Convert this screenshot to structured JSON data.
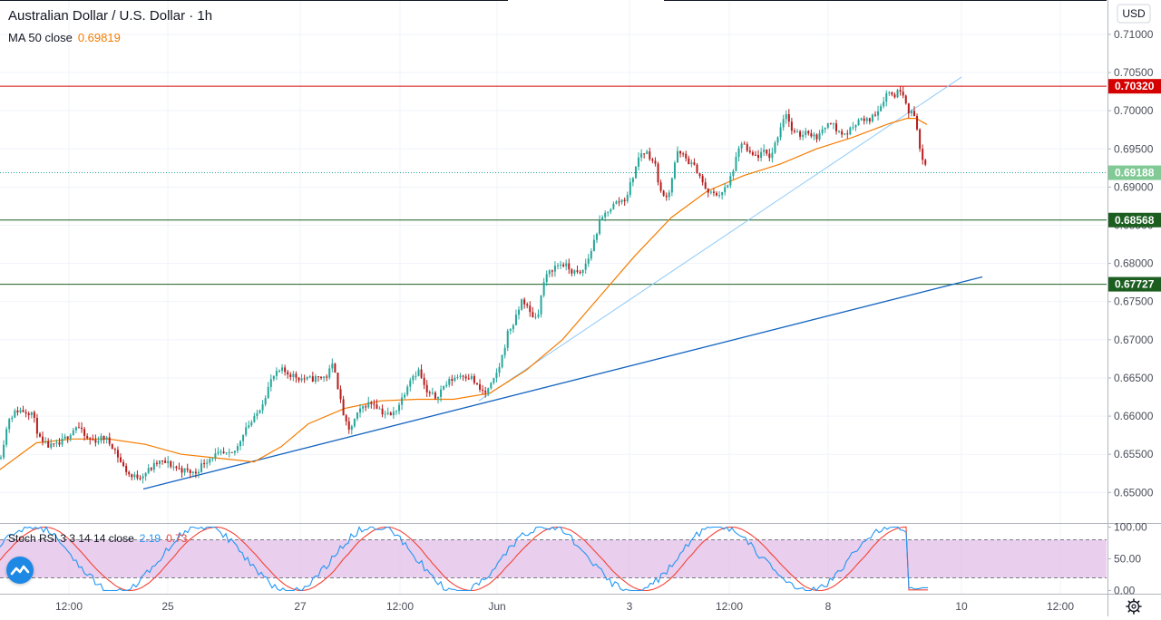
{
  "header": {
    "title": "Australian Dollar / U.S. Dollar · 1h",
    "ma_label": "MA 50 close",
    "ma_value": "0.69819",
    "currency": "USD"
  },
  "stoch": {
    "label": "Stoch RSI 3 3 14 14 close",
    "k_value": "2.19",
    "d_value": "0.73"
  },
  "colors": {
    "bull": "#26a69a",
    "bear": "#b71c1c",
    "ma": "#f57c00",
    "resistance": "#d50000",
    "support": "#1b5e20",
    "trend": "#1565c0",
    "trend_light": "#90caf9",
    "stoch_k": "#2196f3",
    "stoch_d": "#f44336",
    "stoch_band": "#e1bee7",
    "price_tag": "#81c995",
    "accent": "#1e88e5"
  },
  "chart_data": {
    "type": "candlestick",
    "symbol": "Australian Dollar / U.S. Dollar",
    "interval": "1h",
    "y_range": [
      0.646,
      0.7145
    ],
    "y_ticks": [
      "0.65000",
      "0.65500",
      "0.66000",
      "0.66500",
      "0.67000",
      "0.67500",
      "0.68000",
      "0.68500",
      "0.69000",
      "0.69500",
      "0.70000",
      "0.70500",
      "0.71000"
    ],
    "x_ticks": [
      "12:00",
      "25",
      "27",
      "12:00",
      "Jun",
      "3",
      "12:00",
      "8",
      "10",
      "12:00"
    ],
    "price_path": [
      [
        0,
        0.6545
      ],
      [
        10,
        0.6598
      ],
      [
        20,
        0.6608
      ],
      [
        35,
        0.6605
      ],
      [
        45,
        0.6565
      ],
      [
        55,
        0.656
      ],
      [
        65,
        0.6562
      ],
      [
        75,
        0.6575
      ],
      [
        85,
        0.6588
      ],
      [
        95,
        0.657
      ],
      [
        105,
        0.6568
      ],
      [
        115,
        0.6572
      ],
      [
        125,
        0.656
      ],
      [
        135,
        0.6535
      ],
      [
        145,
        0.652
      ],
      [
        155,
        0.6522
      ],
      [
        165,
        0.653
      ],
      [
        175,
        0.654
      ],
      [
        185,
        0.6538
      ],
      [
        195,
        0.6532
      ],
      [
        205,
        0.6528
      ],
      [
        215,
        0.6525
      ],
      [
        225,
        0.654
      ],
      [
        235,
        0.6548
      ],
      [
        245,
        0.655
      ],
      [
        255,
        0.6548
      ],
      [
        262,
        0.656
      ],
      [
        270,
        0.6585
      ],
      [
        280,
        0.6595
      ],
      [
        290,
        0.662
      ],
      [
        300,
        0.665
      ],
      [
        310,
        0.666
      ],
      [
        320,
        0.6655
      ],
      [
        330,
        0.665
      ],
      [
        340,
        0.6648
      ],
      [
        350,
        0.665
      ],
      [
        360,
        0.6652
      ],
      [
        368,
        0.667
      ],
      [
        376,
        0.6615
      ],
      [
        384,
        0.6578
      ],
      [
        392,
        0.6598
      ],
      [
        402,
        0.6615
      ],
      [
        412,
        0.6618
      ],
      [
        422,
        0.6605
      ],
      [
        432,
        0.66
      ],
      [
        442,
        0.662
      ],
      [
        452,
        0.665
      ],
      [
        462,
        0.666
      ],
      [
        470,
        0.663
      ],
      [
        480,
        0.6625
      ],
      [
        490,
        0.664
      ],
      [
        500,
        0.665
      ],
      [
        510,
        0.6655
      ],
      [
        520,
        0.665
      ],
      [
        528,
        0.6635
      ],
      [
        536,
        0.663
      ],
      [
        544,
        0.6645
      ],
      [
        552,
        0.667
      ],
      [
        560,
        0.671
      ],
      [
        568,
        0.6725
      ],
      [
        576,
        0.6755
      ],
      [
        584,
        0.6735
      ],
      [
        592,
        0.6728
      ],
      [
        600,
        0.6778
      ],
      [
        610,
        0.6795
      ],
      [
        620,
        0.68
      ],
      [
        630,
        0.679
      ],
      [
        640,
        0.6785
      ],
      [
        650,
        0.681
      ],
      [
        660,
        0.685
      ],
      [
        670,
        0.687
      ],
      [
        680,
        0.688
      ],
      [
        690,
        0.6885
      ],
      [
        698,
        0.6915
      ],
      [
        706,
        0.6945
      ],
      [
        714,
        0.6945
      ],
      [
        722,
        0.693
      ],
      [
        730,
        0.6885
      ],
      [
        738,
        0.6895
      ],
      [
        746,
        0.6945
      ],
      [
        754,
        0.694
      ],
      [
        762,
        0.693
      ],
      [
        770,
        0.692
      ],
      [
        778,
        0.6895
      ],
      [
        786,
        0.689
      ],
      [
        794,
        0.6892
      ],
      [
        802,
        0.69
      ],
      [
        810,
        0.693
      ],
      [
        818,
        0.696
      ],
      [
        826,
        0.6942
      ],
      [
        834,
        0.694
      ],
      [
        842,
        0.6945
      ],
      [
        850,
        0.694
      ],
      [
        858,
        0.697
      ],
      [
        866,
        0.7
      ],
      [
        874,
        0.697
      ],
      [
        882,
        0.6968
      ],
      [
        890,
        0.6975
      ],
      [
        898,
        0.6965
      ],
      [
        906,
        0.697
      ],
      [
        914,
        0.699
      ],
      [
        922,
        0.6975
      ],
      [
        930,
        0.6968
      ],
      [
        938,
        0.6975
      ],
      [
        946,
        0.699
      ],
      [
        954,
        0.6985
      ],
      [
        962,
        0.6992
      ],
      [
        970,
        0.7005
      ],
      [
        978,
        0.7025
      ],
      [
        986,
        0.702
      ],
      [
        994,
        0.703
      ],
      [
        1002,
        0.7
      ],
      [
        1010,
        0.699
      ],
      [
        1014,
        0.695
      ],
      [
        1018,
        0.693
      ],
      [
        1023,
        0.69188
      ]
    ],
    "ma50_path": [
      [
        0,
        0.653
      ],
      [
        40,
        0.6565
      ],
      [
        80,
        0.657
      ],
      [
        120,
        0.657
      ],
      [
        160,
        0.6563
      ],
      [
        200,
        0.655
      ],
      [
        240,
        0.6545
      ],
      [
        280,
        0.654
      ],
      [
        310,
        0.656
      ],
      [
        340,
        0.659
      ],
      [
        380,
        0.661
      ],
      [
        420,
        0.662
      ],
      [
        460,
        0.6622
      ],
      [
        500,
        0.6622
      ],
      [
        540,
        0.663
      ],
      [
        580,
        0.666
      ],
      [
        620,
        0.67
      ],
      [
        660,
        0.6755
      ],
      [
        700,
        0.681
      ],
      [
        740,
        0.686
      ],
      [
        780,
        0.6895
      ],
      [
        820,
        0.6915
      ],
      [
        860,
        0.693
      ],
      [
        900,
        0.695
      ],
      [
        940,
        0.6965
      ],
      [
        980,
        0.6983
      ],
      [
        1000,
        0.699
      ],
      [
        1010,
        0.699
      ],
      [
        1022,
        0.69819
      ]
    ],
    "horizontal_levels": [
      {
        "price": 0.7032,
        "label": "0.70320",
        "kind": "resistance"
      },
      {
        "price": 0.69188,
        "label": "0.69188",
        "kind": "last-price"
      },
      {
        "price": 0.68568,
        "label": "0.68568",
        "kind": "support"
      },
      {
        "price": 0.67727,
        "label": "0.67727",
        "kind": "support"
      }
    ],
    "trendlines": [
      {
        "name": "lower-trendline",
        "from": [
          158,
          0.65045
        ],
        "to": [
          1083,
          0.67823
        ],
        "style": "solid"
      },
      {
        "name": "upper-trendline",
        "from": [
          528,
          0.662
        ],
        "to": [
          1060,
          0.7044
        ],
        "style": "light"
      }
    ],
    "stoch_rsi": {
      "y_range": [
        -5,
        105
      ],
      "y_ticks": [
        "100.00",
        "50.00",
        "0.00"
      ],
      "band": [
        20,
        80
      ],
      "k_value": 2.19,
      "d_value": 0.73
    }
  }
}
